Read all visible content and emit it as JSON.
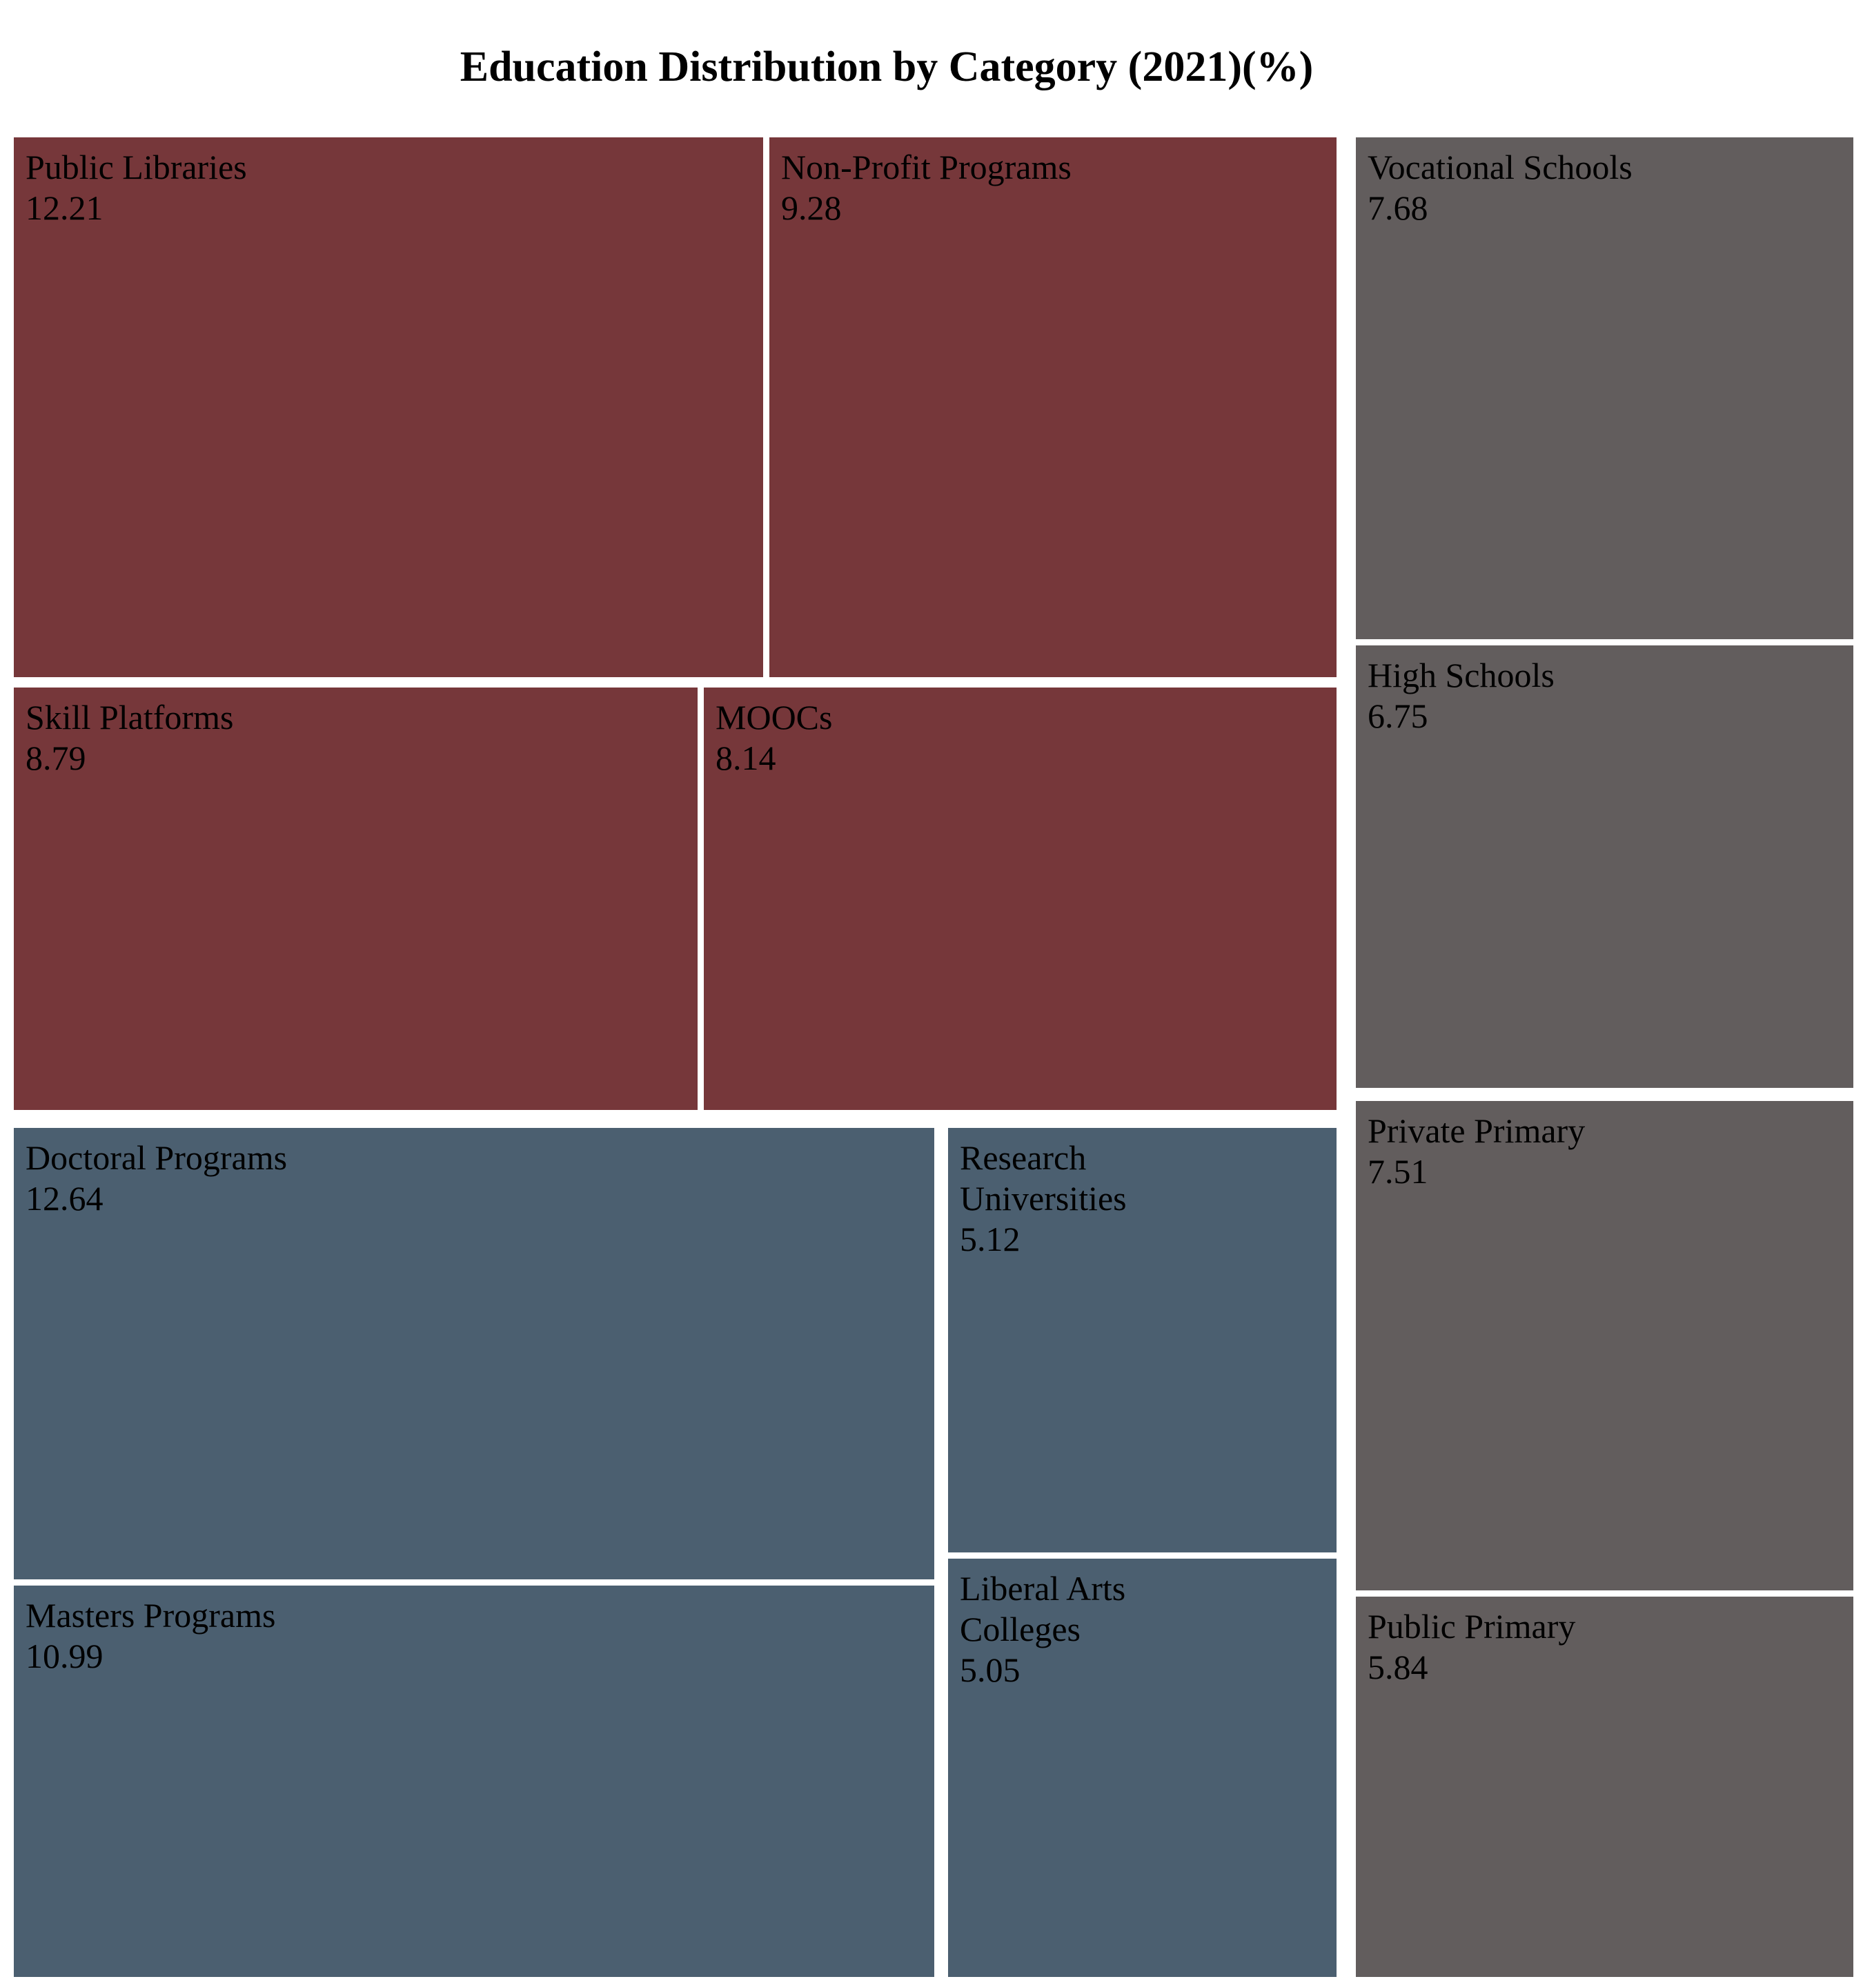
{
  "chart_data": {
    "type": "treemap",
    "title": "Education Distribution by Category (2021)(%)",
    "groups": [
      {
        "color": "#76373a",
        "items": [
          {
            "label_lines": [
              "Public Libraries"
            ],
            "value": 12.21,
            "value_text": "12.21"
          },
          {
            "label_lines": [
              "Non-Profit Programs"
            ],
            "value": 9.28,
            "value_text": "9.28"
          },
          {
            "label_lines": [
              "Skill Platforms"
            ],
            "value": 8.79,
            "value_text": "8.79"
          },
          {
            "label_lines": [
              "MOOCs"
            ],
            "value": 8.14,
            "value_text": "8.14"
          }
        ]
      },
      {
        "color": "#4b5f70",
        "items": [
          {
            "label_lines": [
              "Doctoral Programs"
            ],
            "value": 12.64,
            "value_text": "12.64"
          },
          {
            "label_lines": [
              "Masters Programs"
            ],
            "value": 10.99,
            "value_text": "10.99"
          },
          {
            "label_lines": [
              "Research",
              "Universities"
            ],
            "value": 5.12,
            "value_text": "5.12"
          },
          {
            "label_lines": [
              "Liberal Arts",
              "Colleges"
            ],
            "value": 5.05,
            "value_text": "5.05"
          }
        ]
      },
      {
        "color": "#625d5d",
        "items": [
          {
            "label_lines": [
              "Vocational Schools"
            ],
            "value": 7.68,
            "value_text": "7.68"
          },
          {
            "label_lines": [
              "High Schools"
            ],
            "value": 6.75,
            "value_text": "6.75"
          },
          {
            "label_lines": [
              "Private Primary"
            ],
            "value": 7.51,
            "value_text": "7.51"
          },
          {
            "label_lines": [
              "Public Primary"
            ],
            "value": 5.84,
            "value_text": "5.84"
          }
        ]
      }
    ]
  }
}
